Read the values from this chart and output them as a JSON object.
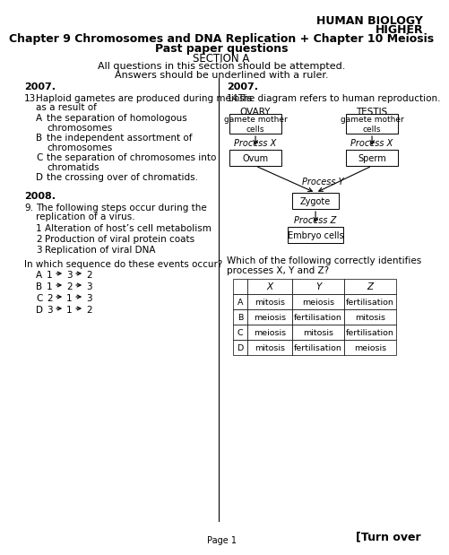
{
  "title_line1": "HUMAN BIOLOGY",
  "title_line2": "HIGHER",
  "title_line3": "Chapter 9 Chromosomes and DNA Replication + Chapter 10 Meiosis",
  "title_line4": "Past paper questions",
  "title_line5": "SECTION A",
  "title_line6": "All questions in this section should be attempted.",
  "title_line7": "Answers should be underlined with a ruler.",
  "bg_color": "#ffffff",
  "text_color": "#000000",
  "page_label": "Page 1",
  "turn_over": "[Turn over"
}
